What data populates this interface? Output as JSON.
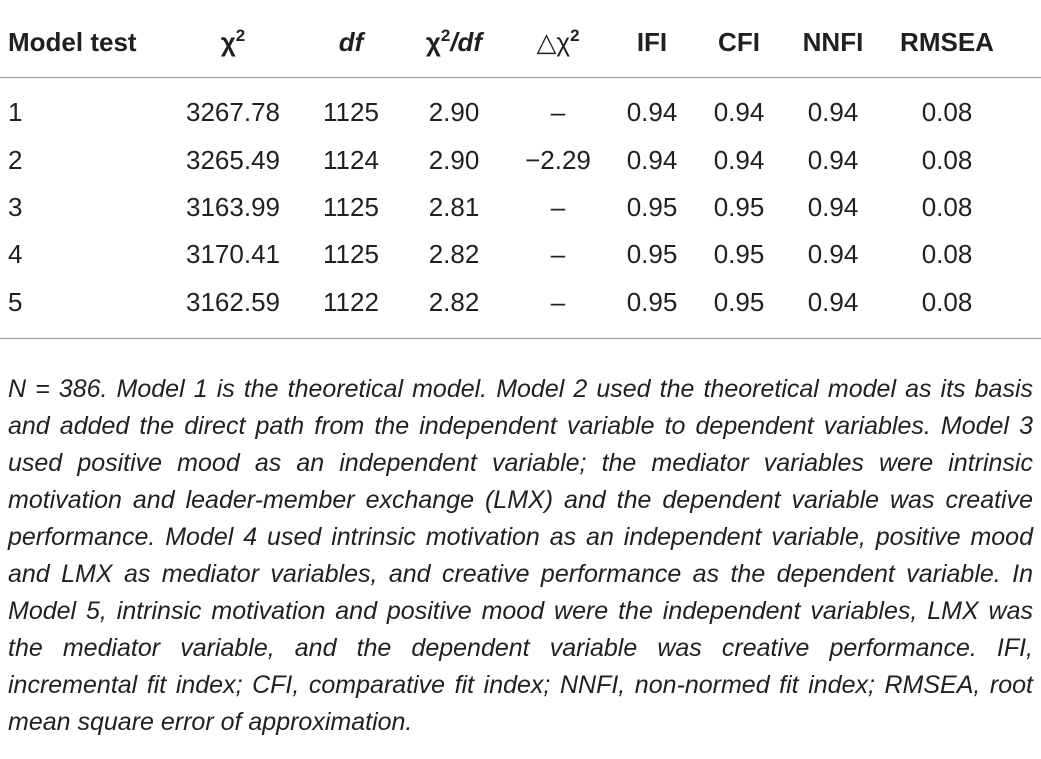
{
  "table": {
    "headers": {
      "model_test": "Model test",
      "chi2_base": "χ",
      "chi2_sup": "2",
      "df": "df",
      "ratio_base": "χ",
      "ratio_sup": "2",
      "ratio_tail": "/df",
      "delta_base": "△χ",
      "delta_sup": "2",
      "ifi": "IFI",
      "cfi": "CFI",
      "nnfi": "NNFI",
      "rmsea": "RMSEA"
    },
    "rows": [
      {
        "model": "1",
        "chi2": "3267.78",
        "df": "1125",
        "ratio": "2.90",
        "delta": "–",
        "ifi": "0.94",
        "cfi": "0.94",
        "nnfi": "0.94",
        "rmsea": "0.08"
      },
      {
        "model": "2",
        "chi2": "3265.49",
        "df": "1124",
        "ratio": "2.90",
        "delta": "−2.29",
        "ifi": "0.94",
        "cfi": "0.94",
        "nnfi": "0.94",
        "rmsea": "0.08"
      },
      {
        "model": "3",
        "chi2": "3163.99",
        "df": "1125",
        "ratio": "2.81",
        "delta": "–",
        "ifi": "0.95",
        "cfi": "0.95",
        "nnfi": "0.94",
        "rmsea": "0.08"
      },
      {
        "model": "4",
        "chi2": "3170.41",
        "df": "1125",
        "ratio": "2.82",
        "delta": "–",
        "ifi": "0.95",
        "cfi": "0.95",
        "nnfi": "0.94",
        "rmsea": "0.08"
      },
      {
        "model": "5",
        "chi2": "3162.59",
        "df": "1122",
        "ratio": "2.82",
        "delta": "–",
        "ifi": "0.95",
        "cfi": "0.95",
        "nnfi": "0.94",
        "rmsea": "0.08"
      }
    ],
    "footnote": "N = 386. Model 1 is the theoretical model. Model 2 used the theoretical model as its basis and added the direct path from the independent variable to dependent variables. Model 3 used positive mood as an independent variable; the mediator variables were intrinsic motivation and leader-member exchange (LMX) and the dependent variable was creative performance. Model 4 used intrinsic motivation as an independent variable, positive mood and LMX as mediator variables, and creative performance as the dependent variable. In Model 5, intrinsic motivation and positive mood were the independent variables, LMX was the mediator variable, and the dependent variable was creative performance. IFI, incremental fit index; CFI, comparative fit index; NNFI, non-normed fit index; RMSEA, root mean square error of approximation."
  }
}
